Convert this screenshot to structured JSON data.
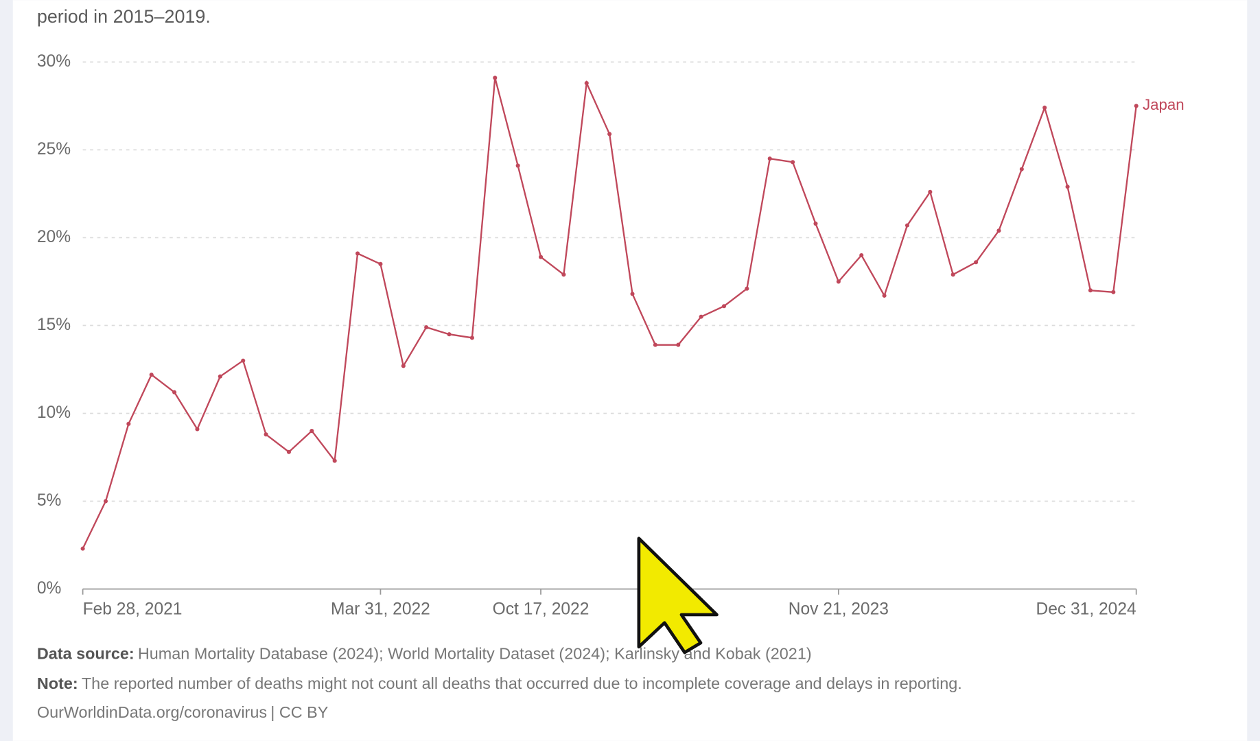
{
  "chart_data": {
    "type": "line",
    "subtitle": "period in 2015–2019.",
    "categories": [
      "Feb 28, 2021",
      null,
      null,
      null,
      null,
      null,
      null,
      null,
      null,
      null,
      null,
      null,
      null,
      "Mar 31, 2022",
      null,
      null,
      null,
      null,
      null,
      null,
      "Oct 17, 2022",
      null,
      null,
      null,
      null,
      null,
      null,
      null,
      null,
      null,
      null,
      null,
      null,
      "Nov 21, 2023",
      null,
      null,
      null,
      null,
      null,
      null,
      null,
      null,
      null,
      null,
      null,
      null,
      "Dec 31, 2024"
    ],
    "series": [
      {
        "name": "Japan",
        "color": "#c0485b",
        "values": [
          2.3,
          5.0,
          9.4,
          12.2,
          11.2,
          9.1,
          12.1,
          13.0,
          8.8,
          7.8,
          9.0,
          7.3,
          19.1,
          18.5,
          12.7,
          14.9,
          14.5,
          14.3,
          29.1,
          24.1,
          18.9,
          17.9,
          28.8,
          25.9,
          16.8,
          13.9,
          13.9,
          15.5,
          16.1,
          17.1,
          24.5,
          24.3,
          20.8,
          17.5,
          19.0,
          16.7,
          20.7,
          22.6,
          17.9,
          18.6,
          20.4,
          23.9,
          27.4,
          22.9,
          17.0,
          16.9,
          27.5
        ]
      }
    ],
    "ylim": [
      0,
      30
    ],
    "yticks": [
      {
        "value": 0,
        "label": "0%"
      },
      {
        "value": 5,
        "label": "5%"
      },
      {
        "value": 10,
        "label": "10%"
      },
      {
        "value": 15,
        "label": "15%"
      },
      {
        "value": 20,
        "label": "20%"
      },
      {
        "value": 25,
        "label": "25%"
      },
      {
        "value": 30,
        "label": "30%"
      }
    ],
    "grid": true,
    "source_label": "Data source:",
    "source": "Human Mortality Database (2024); World Mortality Dataset (2024); Karlinsky and Kobak (2021)",
    "note_label": "Note:",
    "note": "The reported number of deaths might not count all deaths that occurred due to incomplete coverage and delays in reporting.",
    "url": "OurWorldinData.org/coronavirus",
    "license": "| CC BY"
  }
}
